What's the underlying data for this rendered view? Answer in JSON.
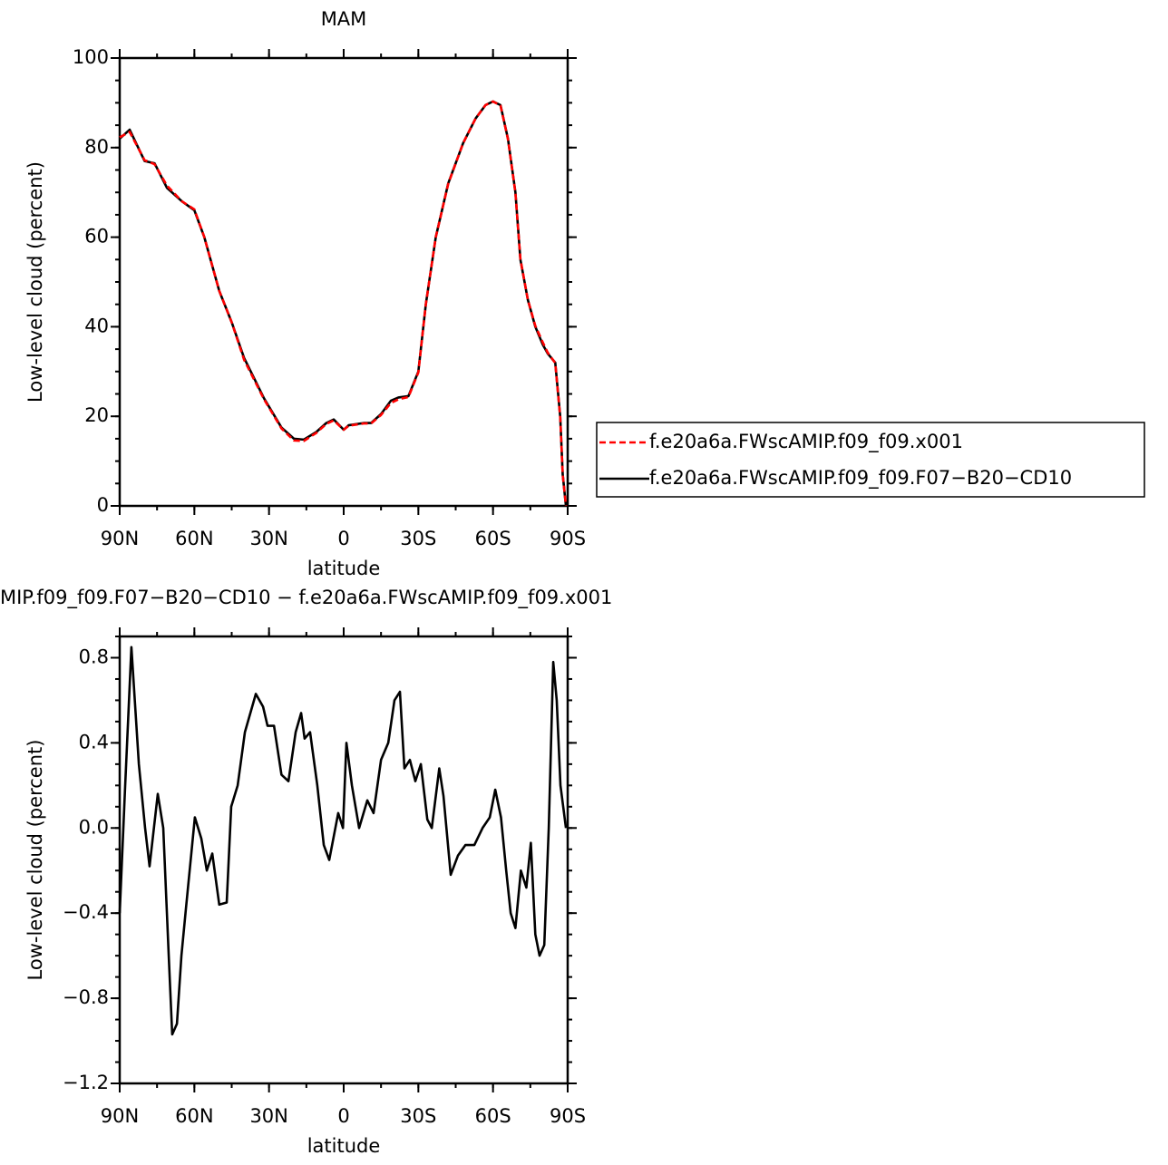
{
  "chart_data": [
    {
      "type": "line",
      "title": "MAM",
      "x_label": "latitude",
      "y_label": "Low-level cloud (percent)",
      "x": [
        90,
        86,
        80,
        76,
        71,
        65,
        60,
        56,
        50,
        45,
        40,
        32,
        25,
        20,
        16,
        11,
        7,
        4,
        0,
        -2,
        -8,
        -11,
        -15,
        -19,
        -22,
        -26,
        -30,
        -33,
        -37,
        -42,
        -48,
        -53,
        -57,
        -60,
        -63,
        -66,
        -69,
        -71,
        -74,
        -77,
        -80,
        -82,
        -85,
        -87,
        -88,
        -89.3
      ],
      "xlim": [
        90,
        -90
      ],
      "xticks": [
        {
          "value": 90,
          "label": "90N"
        },
        {
          "value": 60,
          "label": "60N"
        },
        {
          "value": 30,
          "label": "30N"
        },
        0,
        {
          "value": -30,
          "label": "30S"
        },
        {
          "value": -60,
          "label": "60S"
        },
        {
          "value": -90,
          "label": "90S"
        }
      ],
      "ylim": [
        0,
        100
      ],
      "yticks": [
        0,
        20,
        40,
        60,
        80,
        100
      ],
      "legend": "right",
      "series": [
        {
          "name": "f.e20a6a.FWscAMIP.f09_f09.x001",
          "color": "#ff0000",
          "dash": "dashed",
          "values": [
            82.3,
            83.5,
            77.2,
            76.3,
            71.5,
            68,
            66.2,
            60,
            48,
            41,
            32.6,
            23.8,
            17.3,
            14.6,
            14.5,
            16.3,
            18.3,
            19.1,
            17,
            17.9,
            18.4,
            18.4,
            20.3,
            23,
            23.8,
            24.3,
            29.8,
            45,
            60,
            71.9,
            81,
            86.5,
            89.5,
            90.3,
            89.4,
            81.9,
            69.9,
            55.1,
            46,
            40.2,
            36.5,
            34.2,
            31.9,
            19.8,
            7,
            0
          ]
        },
        {
          "name": "f.e20a6a.FWscAMIP.f09_f09.F07−B20−CD10",
          "color": "#000000",
          "dash": "solid",
          "values": [
            82,
            84,
            77,
            76.5,
            71,
            68,
            66,
            60,
            48,
            41,
            33,
            24,
            17.5,
            15,
            14.8,
            16.5,
            18.5,
            19.3,
            17,
            18,
            18.5,
            18.5,
            20.5,
            23.5,
            24.2,
            24.5,
            30,
            45,
            60,
            72,
            81,
            86.5,
            89.5,
            90.3,
            89.5,
            82,
            70,
            55,
            46,
            40,
            36,
            34,
            32,
            20,
            7,
            0
          ]
        }
      ]
    },
    {
      "type": "line",
      "title": "MIP.f09_f09.F07−B20−CD10 − f.e20a6a.FWscAMIP.f09_f09.x001",
      "x_label": "latitude",
      "y_label": "Low-level cloud (percent)",
      "x": [
        90,
        87.8,
        85.3,
        82.3,
        79.8,
        78,
        74.7,
        72.5,
        70.3,
        68.9,
        67,
        65.2,
        63.4,
        59.8,
        57.2,
        55,
        52.8,
        50,
        47,
        45.2,
        42.6,
        39.7,
        35.3,
        32.4,
        30.6,
        28,
        25,
        22.2,
        19.3,
        17.1,
        15.7,
        13.5,
        10.6,
        8,
        5.8,
        2.2,
        0.3,
        -1.1,
        -3.3,
        -6.2,
        -9.5,
        -12,
        -15,
        -17.9,
        -20.4,
        -22.6,
        -24.4,
        -26.6,
        -28.8,
        -31,
        -33.6,
        -35.4,
        -38.4,
        -40.1,
        -43,
        -45.9,
        -48.9,
        -52.5,
        -55.8,
        -58.7,
        -60.9,
        -63.2,
        -65.3,
        -67.1,
        -69,
        -71.2,
        -73.4,
        -75.2,
        -77,
        -78.7,
        -80.6,
        -82.4,
        -84.2,
        -85.6,
        -87.1,
        -89.3
      ],
      "xlim": [
        90,
        -90
      ],
      "xticks": [
        {
          "value": 90,
          "label": "90N"
        },
        {
          "value": 60,
          "label": "60N"
        },
        {
          "value": 30,
          "label": "30N"
        },
        0,
        {
          "value": -30,
          "label": "30S"
        },
        {
          "value": -60,
          "label": "60S"
        },
        {
          "value": -90,
          "label": "90S"
        }
      ],
      "ylim": [
        -1.2,
        0.9
      ],
      "yticks": [
        {
          "value": -1.2,
          "label": "−1.2"
        },
        {
          "value": -0.8,
          "label": "−0.8"
        },
        {
          "value": -0.4,
          "label": "−0.4"
        },
        {
          "value": 0,
          "label": "0.0"
        },
        0.4,
        0.8
      ],
      "color": "#000000",
      "values": [
        -0.4,
        0.2,
        0.85,
        0.3,
        0,
        -0.18,
        0.16,
        0,
        -0.6,
        -0.97,
        -0.92,
        -0.6,
        -0.38,
        0.05,
        -0.05,
        -0.2,
        -0.12,
        -0.36,
        -0.35,
        0.1,
        0.2,
        0.45,
        0.63,
        0.57,
        0.48,
        0.48,
        0.25,
        0.22,
        0.45,
        0.54,
        0.42,
        0.45,
        0.2,
        -0.08,
        -0.15,
        0.07,
        0,
        0.4,
        0.2,
        0,
        0.13,
        0.07,
        0.32,
        0.4,
        0.6,
        0.64,
        0.28,
        0.32,
        0.22,
        0.3,
        0.04,
        0,
        0.28,
        0.15,
        -0.22,
        -0.13,
        -0.08,
        -0.08,
        0,
        0.05,
        0.18,
        0.05,
        -0.2,
        -0.4,
        -0.47,
        -0.2,
        -0.28,
        -0.07,
        -0.5,
        -0.6,
        -0.55,
        0,
        0.78,
        0.6,
        0.2,
        0
      ]
    }
  ]
}
